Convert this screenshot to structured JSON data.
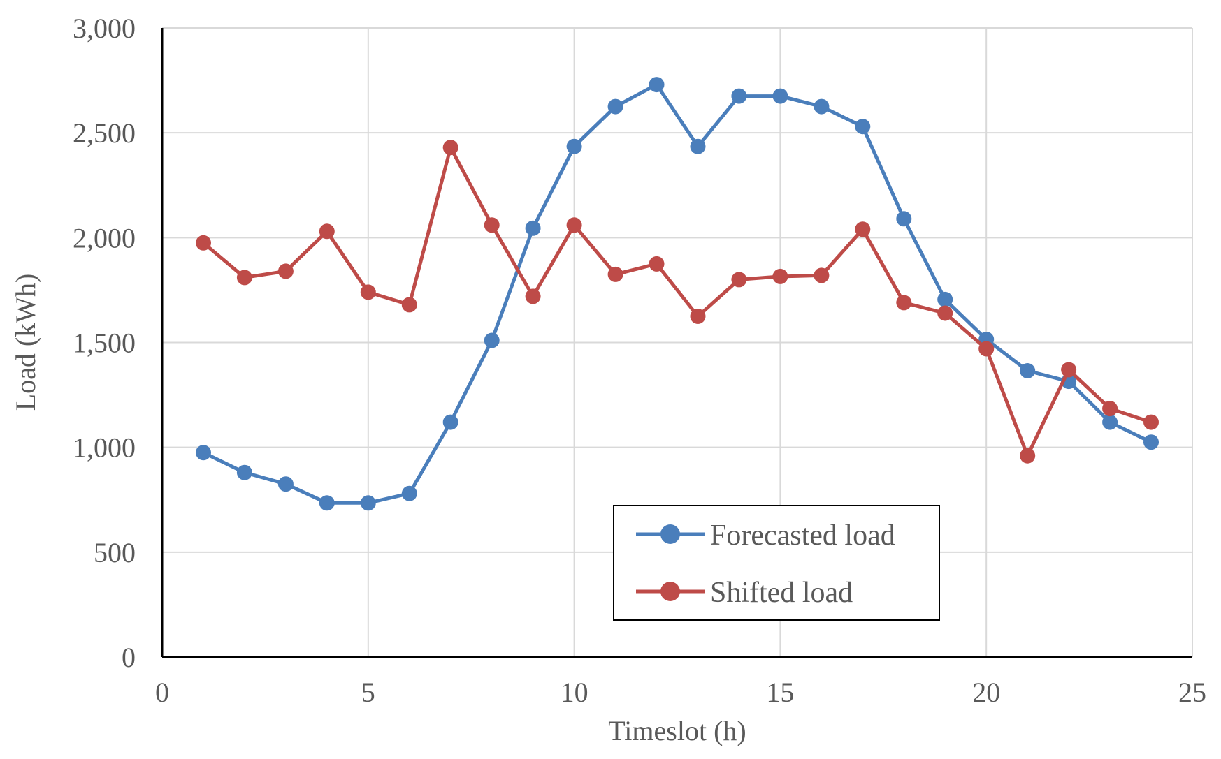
{
  "chart_data": {
    "type": "line",
    "title": "",
    "xlabel": "Timeslot (h)",
    "ylabel": "Load (kWh)",
    "xlim": [
      0,
      25
    ],
    "ylim": [
      0,
      3000
    ],
    "x_ticks": [
      0,
      5,
      10,
      15,
      20,
      25
    ],
    "y_ticks": [
      0,
      500,
      1000,
      1500,
      2000,
      2500,
      3000
    ],
    "x_tick_labels": [
      "0",
      "5",
      "10",
      "15",
      "20",
      "25"
    ],
    "y_tick_labels": [
      "0",
      "500",
      "1,000",
      "1,500",
      "2,000",
      "2,500",
      "3,000"
    ],
    "grid": true,
    "legend_position": "bottom-center",
    "x": [
      1,
      2,
      3,
      4,
      5,
      6,
      7,
      8,
      9,
      10,
      11,
      12,
      13,
      14,
      15,
      16,
      17,
      18,
      19,
      20,
      21,
      22,
      23,
      24
    ],
    "series": [
      {
        "name": "Forecasted load",
        "color": "#4a7ebb",
        "values": [
          975,
          880,
          825,
          735,
          735,
          780,
          1120,
          1510,
          2045,
          2435,
          2625,
          2730,
          2435,
          2675,
          2675,
          2625,
          2530,
          2090,
          1705,
          1515,
          1365,
          1315,
          1120,
          1025
        ]
      },
      {
        "name": "Shifted load",
        "color": "#be4b48",
        "values": [
          1975,
          1810,
          1840,
          2030,
          1740,
          1680,
          2430,
          2060,
          1720,
          2060,
          1825,
          1875,
          1625,
          1800,
          1815,
          1820,
          2040,
          1690,
          1640,
          1470,
          960,
          1370,
          1185,
          1120
        ]
      }
    ]
  }
}
